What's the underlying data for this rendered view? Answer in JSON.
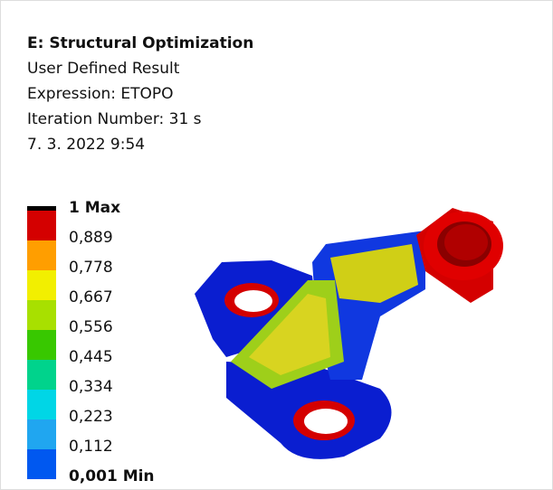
{
  "header": {
    "title": "E: Structural Optimization",
    "lines": [
      "User Defined Result",
      "Expression: ETOPO",
      "Iteration Number: 31 s",
      "7. 3. 2022 9:54"
    ]
  },
  "legend": {
    "labels": [
      "1 Max",
      "0,889",
      "0,778",
      "0,667",
      "0,556",
      "0,445",
      "0,334",
      "0,223",
      "0,112",
      "0,001 Min"
    ],
    "colors": [
      "#d40000",
      "#ff9e00",
      "#f2ef00",
      "#a8e000",
      "#38c800",
      "#00d38c",
      "#00d6e6",
      "#20a6f0",
      "#0058f0"
    ]
  }
}
